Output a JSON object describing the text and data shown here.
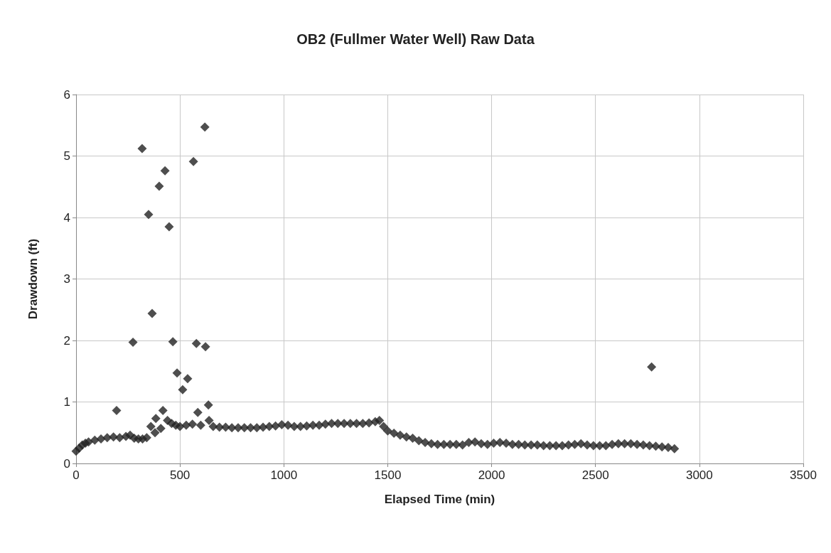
{
  "chart_data": {
    "type": "scatter",
    "title": "OB2 (Fullmer Water Well) Raw Data",
    "xlabel": "Elapsed Time (min)",
    "ylabel": "Drawdown (ft)",
    "xlim": [
      0,
      3500
    ],
    "xticks": [
      0,
      500,
      1000,
      1500,
      2000,
      2500,
      3000,
      3500
    ],
    "ylim": [
      0,
      6
    ],
    "yticks": [
      0,
      1,
      2,
      3,
      4,
      5,
      6
    ],
    "grid": true,
    "marker": "diamond",
    "series": [
      {
        "color": "#222222",
        "x": [
          0,
          15,
          30,
          45,
          60,
          90,
          120,
          150,
          180,
          195,
          210,
          240,
          260,
          274,
          280,
          300,
          318,
          320,
          340,
          349,
          360,
          366,
          380,
          384,
          400,
          408,
          418,
          428,
          440,
          448,
          460,
          466,
          480,
          486,
          500,
          513,
          530,
          537,
          560,
          565,
          579,
          586,
          600,
          620,
          623,
          637,
          640,
          660,
          690,
          720,
          750,
          780,
          810,
          840,
          870,
          900,
          930,
          960,
          990,
          1020,
          1050,
          1080,
          1110,
          1140,
          1170,
          1200,
          1230,
          1260,
          1290,
          1320,
          1350,
          1380,
          1410,
          1440,
          1460,
          1480,
          1500,
          1530,
          1560,
          1590,
          1620,
          1650,
          1680,
          1710,
          1740,
          1770,
          1800,
          1830,
          1860,
          1890,
          1920,
          1950,
          1980,
          2010,
          2040,
          2070,
          2100,
          2130,
          2160,
          2190,
          2220,
          2250,
          2280,
          2310,
          2340,
          2370,
          2400,
          2430,
          2460,
          2490,
          2520,
          2550,
          2580,
          2610,
          2640,
          2670,
          2700,
          2730,
          2760,
          2770,
          2790,
          2820,
          2850,
          2880
        ],
        "values": [
          0.2,
          0.25,
          0.3,
          0.33,
          0.35,
          0.38,
          0.4,
          0.42,
          0.43,
          0.86,
          0.42,
          0.44,
          0.46,
          1.97,
          0.41,
          0.4,
          5.12,
          0.4,
          0.42,
          4.05,
          0.6,
          2.44,
          0.5,
          0.73,
          4.51,
          0.57,
          0.86,
          4.76,
          0.7,
          3.85,
          0.65,
          1.98,
          0.62,
          1.47,
          0.6,
          1.2,
          0.62,
          1.38,
          0.64,
          4.91,
          1.95,
          0.83,
          0.62,
          5.47,
          1.9,
          0.95,
          0.7,
          0.6,
          0.59,
          0.59,
          0.58,
          0.58,
          0.58,
          0.58,
          0.58,
          0.59,
          0.6,
          0.61,
          0.63,
          0.62,
          0.6,
          0.6,
          0.61,
          0.62,
          0.62,
          0.64,
          0.65,
          0.65,
          0.65,
          0.65,
          0.65,
          0.65,
          0.66,
          0.68,
          0.7,
          0.6,
          0.53,
          0.49,
          0.46,
          0.43,
          0.41,
          0.37,
          0.34,
          0.32,
          0.31,
          0.31,
          0.31,
          0.31,
          0.3,
          0.34,
          0.35,
          0.32,
          0.31,
          0.33,
          0.34,
          0.33,
          0.31,
          0.31,
          0.3,
          0.3,
          0.3,
          0.29,
          0.29,
          0.29,
          0.29,
          0.3,
          0.31,
          0.32,
          0.3,
          0.29,
          0.29,
          0.29,
          0.31,
          0.32,
          0.32,
          0.32,
          0.31,
          0.3,
          0.29,
          1.57,
          0.28,
          0.27,
          0.26,
          0.24
        ]
      }
    ]
  }
}
